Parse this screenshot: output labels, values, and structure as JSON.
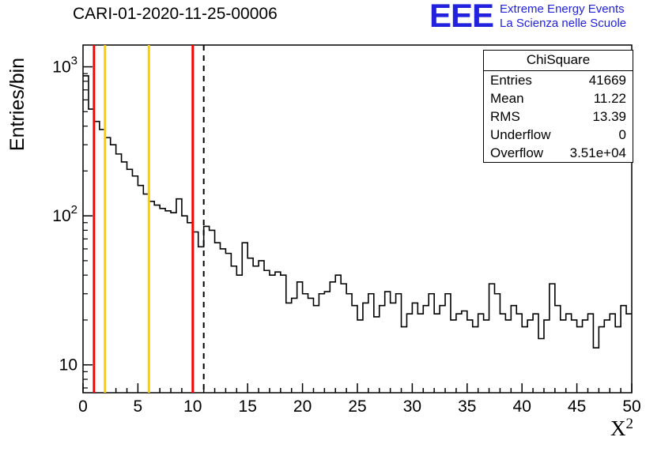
{
  "title": "CARI-01-2020-11-25-00006",
  "logo": {
    "text": "EEE",
    "line1": "Extreme Energy Events",
    "line2": "La Scienza nelle Scuole",
    "color": "#2121de"
  },
  "stats": {
    "header": "ChiSquare",
    "rows": [
      {
        "label": "Entries",
        "value": "41669"
      },
      {
        "label": "Mean",
        "value": "11.22"
      },
      {
        "label": "RMS",
        "value": "13.39"
      },
      {
        "label": "Underflow",
        "value": "0"
      },
      {
        "label": "Overflow",
        "value": "3.51e+04"
      }
    ]
  },
  "chart_data": {
    "type": "bar",
    "style": "step-histogram",
    "title": "CARI-01-2020-11-25-00006",
    "xlabel": "X^2",
    "xlabel_base": "X",
    "xlabel_sup": "2",
    "ylabel": "Entries/bin",
    "xlim": [
      0,
      50
    ],
    "ylim": [
      6.5,
      1400
    ],
    "yscale": "log",
    "x_major_ticks": [
      0,
      5,
      10,
      15,
      20,
      25,
      30,
      35,
      40,
      45,
      50
    ],
    "y_major_ticks": [
      10,
      100,
      1000
    ],
    "bin_start": 0,
    "bin_width": 0.5,
    "line_color": "#000000",
    "values": [
      870,
      520,
      430,
      380,
      335,
      300,
      260,
      230,
      205,
      185,
      160,
      140,
      125,
      118,
      112,
      108,
      105,
      130,
      100,
      90,
      78,
      62,
      85,
      80,
      66,
      60,
      56,
      46,
      40,
      66,
      52,
      46,
      50,
      43,
      40,
      42,
      40,
      26,
      28,
      36,
      30,
      28,
      25,
      30,
      31,
      36,
      40,
      35,
      30,
      25,
      20,
      26,
      30,
      21,
      25,
      31,
      26,
      30,
      18,
      22,
      26,
      22,
      25,
      30,
      22,
      25,
      30,
      20,
      22,
      23,
      20,
      18,
      22,
      20,
      35,
      30,
      22,
      20,
      25,
      22,
      18,
      20,
      22,
      15,
      20,
      35,
      25,
      20,
      22,
      20,
      18,
      20,
      22,
      13,
      18,
      20,
      22,
      18,
      25,
      22
    ],
    "vlines": [
      {
        "x": 1,
        "color": "#ff0000",
        "style": "solid"
      },
      {
        "x": 2,
        "color": "#ffcc00",
        "style": "solid"
      },
      {
        "x": 6,
        "color": "#ffcc00",
        "style": "solid"
      },
      {
        "x": 10,
        "color": "#ff0000",
        "style": "solid"
      },
      {
        "x": 11,
        "color": "#000000",
        "style": "dashed"
      }
    ],
    "stats_box": {
      "header": "ChiSquare",
      "entries": 41669,
      "mean": 11.22,
      "rms": 13.39,
      "underflow": 0,
      "overflow": "3.51e+04"
    },
    "legend_position": "none",
    "grid": false
  }
}
